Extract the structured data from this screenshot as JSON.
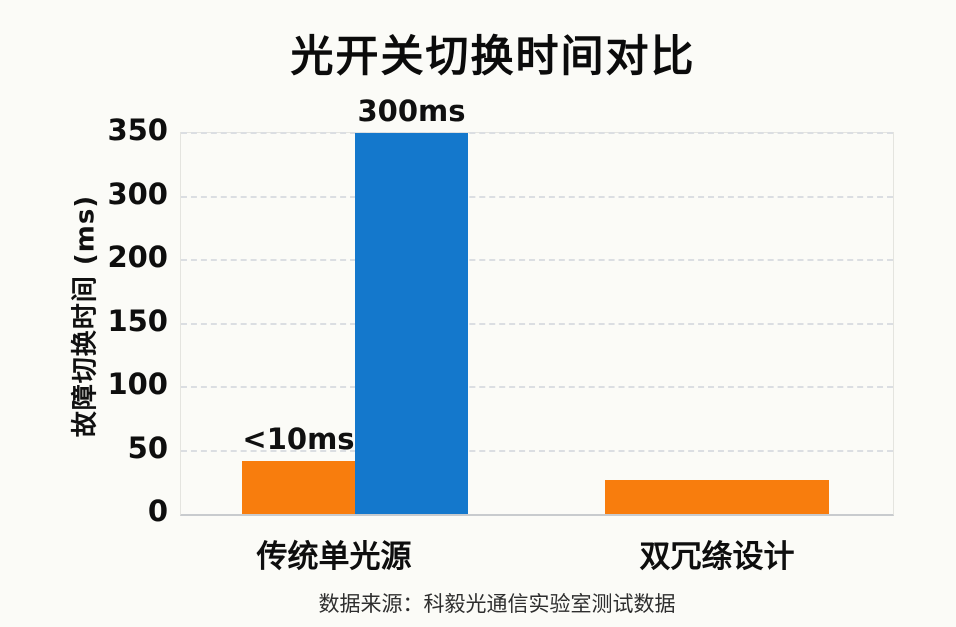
{
  "title": "光开关切换时间对比",
  "y_axis": {
    "label": "故障切换时间 (ms)",
    "ticks": [
      "350",
      "300",
      "200",
      "150",
      "100",
      "50",
      "0"
    ]
  },
  "x_axis": {
    "categories": [
      "传统单光源",
      "双冗绦设计"
    ]
  },
  "footer": "数据来源：科毅光通信实验室测试数据",
  "colors": {
    "orange": "#F87D0D",
    "blue": "#1478CC",
    "grid": "#DBDEE2",
    "axis_line": "#C8CBCE",
    "plot_border": "#E4E4DF",
    "text": "#101010",
    "footer_text": "#2E2E2E",
    "background": "#FBFBF7"
  },
  "chart_data": {
    "type": "bar",
    "title": "光开关切换时间对比",
    "ylabel": "故障切换时间 (ms)",
    "xlabel": "",
    "categories": [
      "传统单光源",
      "双冗绦设计"
    ],
    "ytick_values": [
      0,
      50,
      100,
      150,
      200,
      300,
      350
    ],
    "ytick_note": "tick labels evenly spaced; 250 is absent from the axis",
    "ylim": [
      0,
      350
    ],
    "grid": "horizontal dashed lines at every tick",
    "legend": "none",
    "bars": [
      {
        "category": "传统单光源",
        "color_name": "orange",
        "value_label": "<10ms",
        "drawn_value": 42
      },
      {
        "category": "传统单光源",
        "color_name": "blue",
        "value_label": "300ms",
        "drawn_value": 350
      },
      {
        "category": "双冗绦设计",
        "color_name": "orange",
        "value_label": "",
        "drawn_value": 27
      }
    ],
    "source_note": "数据来源：科毅光通信实验室测试数据"
  }
}
